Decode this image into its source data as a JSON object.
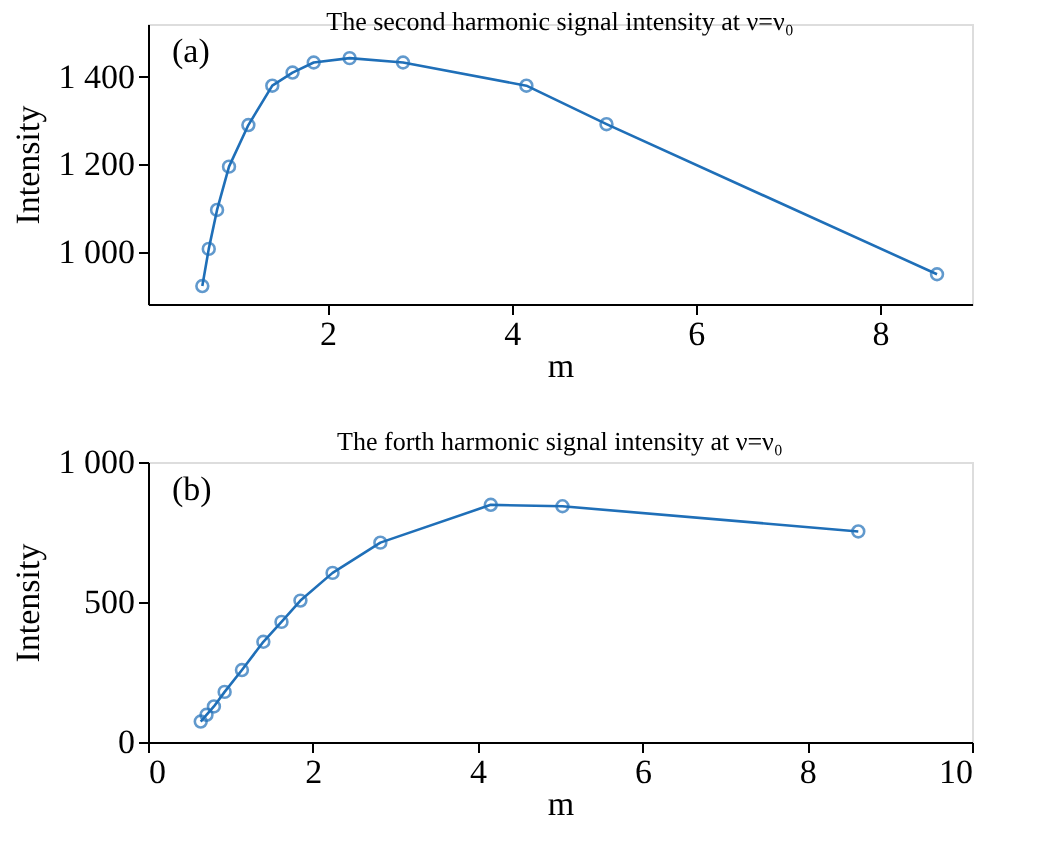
{
  "chart_data": [
    {
      "type": "line",
      "title": "The second harmonic signal intensity at ν=ν₀",
      "xlabel": "m",
      "ylabel": "Intensity",
      "annotations": [
        "(a)"
      ],
      "marker": "circle",
      "grid": false,
      "x": [
        0.64,
        0.71,
        0.8,
        0.93,
        1.14,
        1.4,
        1.62,
        1.85,
        2.24,
        2.82,
        4.16,
        5.03,
        8.62
      ],
      "series": [
        {
          "color": "#1f6fb8",
          "values": [
            921,
            1006,
            1095,
            1194,
            1289,
            1379,
            1409,
            1432,
            1442,
            1432,
            1379,
            1291,
            948
          ]
        }
      ],
      "xlim": [
        0.05,
        9
      ],
      "ylim": [
        880,
        1520
      ],
      "xticks": [
        2,
        4,
        6,
        8
      ],
      "yticks": [
        {
          "value": 1000,
          "label": "1 000"
        },
        {
          "value": 1200,
          "label": "1 200"
        },
        {
          "value": 1400,
          "label": "1 400"
        }
      ]
    },
    {
      "type": "line",
      "title": "The forth harmonic signal intensity at ν=ν₀",
      "xlabel": "m",
      "ylabel": "Intensity",
      "annotations": [
        "(b)"
      ],
      "marker": "circle",
      "grid": false,
      "x": [
        0.64,
        0.71,
        0.8,
        0.93,
        1.14,
        1.4,
        1.62,
        1.85,
        2.24,
        2.82,
        4.16,
        5.03,
        8.62
      ],
      "series": [
        {
          "color": "#1f6fb8",
          "values": [
            73,
            97,
            127,
            179,
            257,
            358,
            429,
            505,
            604,
            712,
            847,
            842,
            752
          ]
        }
      ],
      "xlim": [
        0,
        10
      ],
      "ylim": [
        0,
        1000
      ],
      "xticks": [
        0,
        2,
        4,
        6,
        8,
        10
      ],
      "yticks": [
        0,
        500,
        {
          "value": 1000,
          "label": "1 000"
        }
      ]
    }
  ]
}
